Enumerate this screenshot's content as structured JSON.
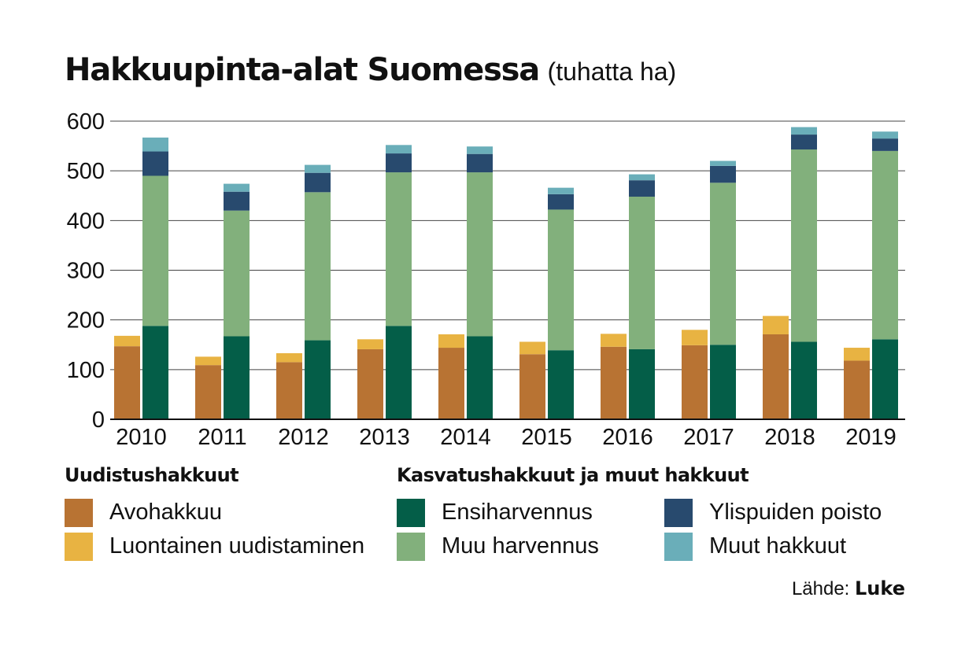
{
  "title": "Hakkuupinta-alat Suomessa",
  "subtitle": "(tuhatta ha)",
  "legend": {
    "group1_heading": "Uudistushakkuut",
    "group2_heading": "Kasvatushakkuut ja muut hakkuut",
    "items": [
      {
        "label": "Avohakkuu",
        "color": "#b87333"
      },
      {
        "label": "Luontainen uudistaminen",
        "color": "#e8b342"
      },
      {
        "label": "Ensiharvennus",
        "color": "#045e48"
      },
      {
        "label": "Muu harvennus",
        "color": "#82b07c"
      },
      {
        "label": "Ylispuiden poisto",
        "color": "#284a6e"
      },
      {
        "label": "Muut hakkuut",
        "color": "#6aaeb9"
      }
    ]
  },
  "source": {
    "prefix": "Lähde:",
    "name": "Luke"
  },
  "chart_data": {
    "type": "bar",
    "stacking": "two stacked bars per year (Uudistushakkuut | Kasvatushakkuut ja muut hakkuut)",
    "categories": [
      "2010",
      "2011",
      "2012",
      "2013",
      "2014",
      "2015",
      "2016",
      "2017",
      "2018",
      "2019"
    ],
    "ylim": [
      0,
      600
    ],
    "yticks": [
      0,
      100,
      200,
      300,
      400,
      500,
      600
    ],
    "grid": true,
    "series": [
      {
        "name": "Avohakkuu",
        "group": "Uudistushakkuut",
        "color": "#b87333",
        "values": [
          147,
          109,
          115,
          141,
          144,
          131,
          146,
          149,
          171,
          118
        ]
      },
      {
        "name": "Luontainen uudistaminen",
        "group": "Uudistushakkuut",
        "color": "#e8b342",
        "values": [
          21,
          17,
          18,
          20,
          27,
          25,
          26,
          31,
          37,
          26
        ]
      },
      {
        "name": "Ensiharvennus",
        "group": "Kasvatushakkuut ja muut hakkuut",
        "color": "#045e48",
        "values": [
          188,
          167,
          159,
          188,
          167,
          139,
          141,
          150,
          156,
          161
        ]
      },
      {
        "name": "Muu harvennus",
        "group": "Kasvatushakkuut ja muut hakkuut",
        "color": "#82b07c",
        "values": [
          302,
          253,
          298,
          309,
          330,
          283,
          307,
          326,
          387,
          379
        ]
      },
      {
        "name": "Ylispuiden poisto",
        "group": "Kasvatushakkuut ja muut hakkuut",
        "color": "#284a6e",
        "values": [
          49,
          38,
          39,
          38,
          37,
          31,
          33,
          34,
          30,
          25
        ]
      },
      {
        "name": "Muut hakkuut",
        "group": "Kasvatushakkuut ja muut hakkuut",
        "color": "#6aaeb9",
        "values": [
          28,
          16,
          16,
          17,
          15,
          13,
          12,
          10,
          15,
          14
        ]
      }
    ]
  }
}
